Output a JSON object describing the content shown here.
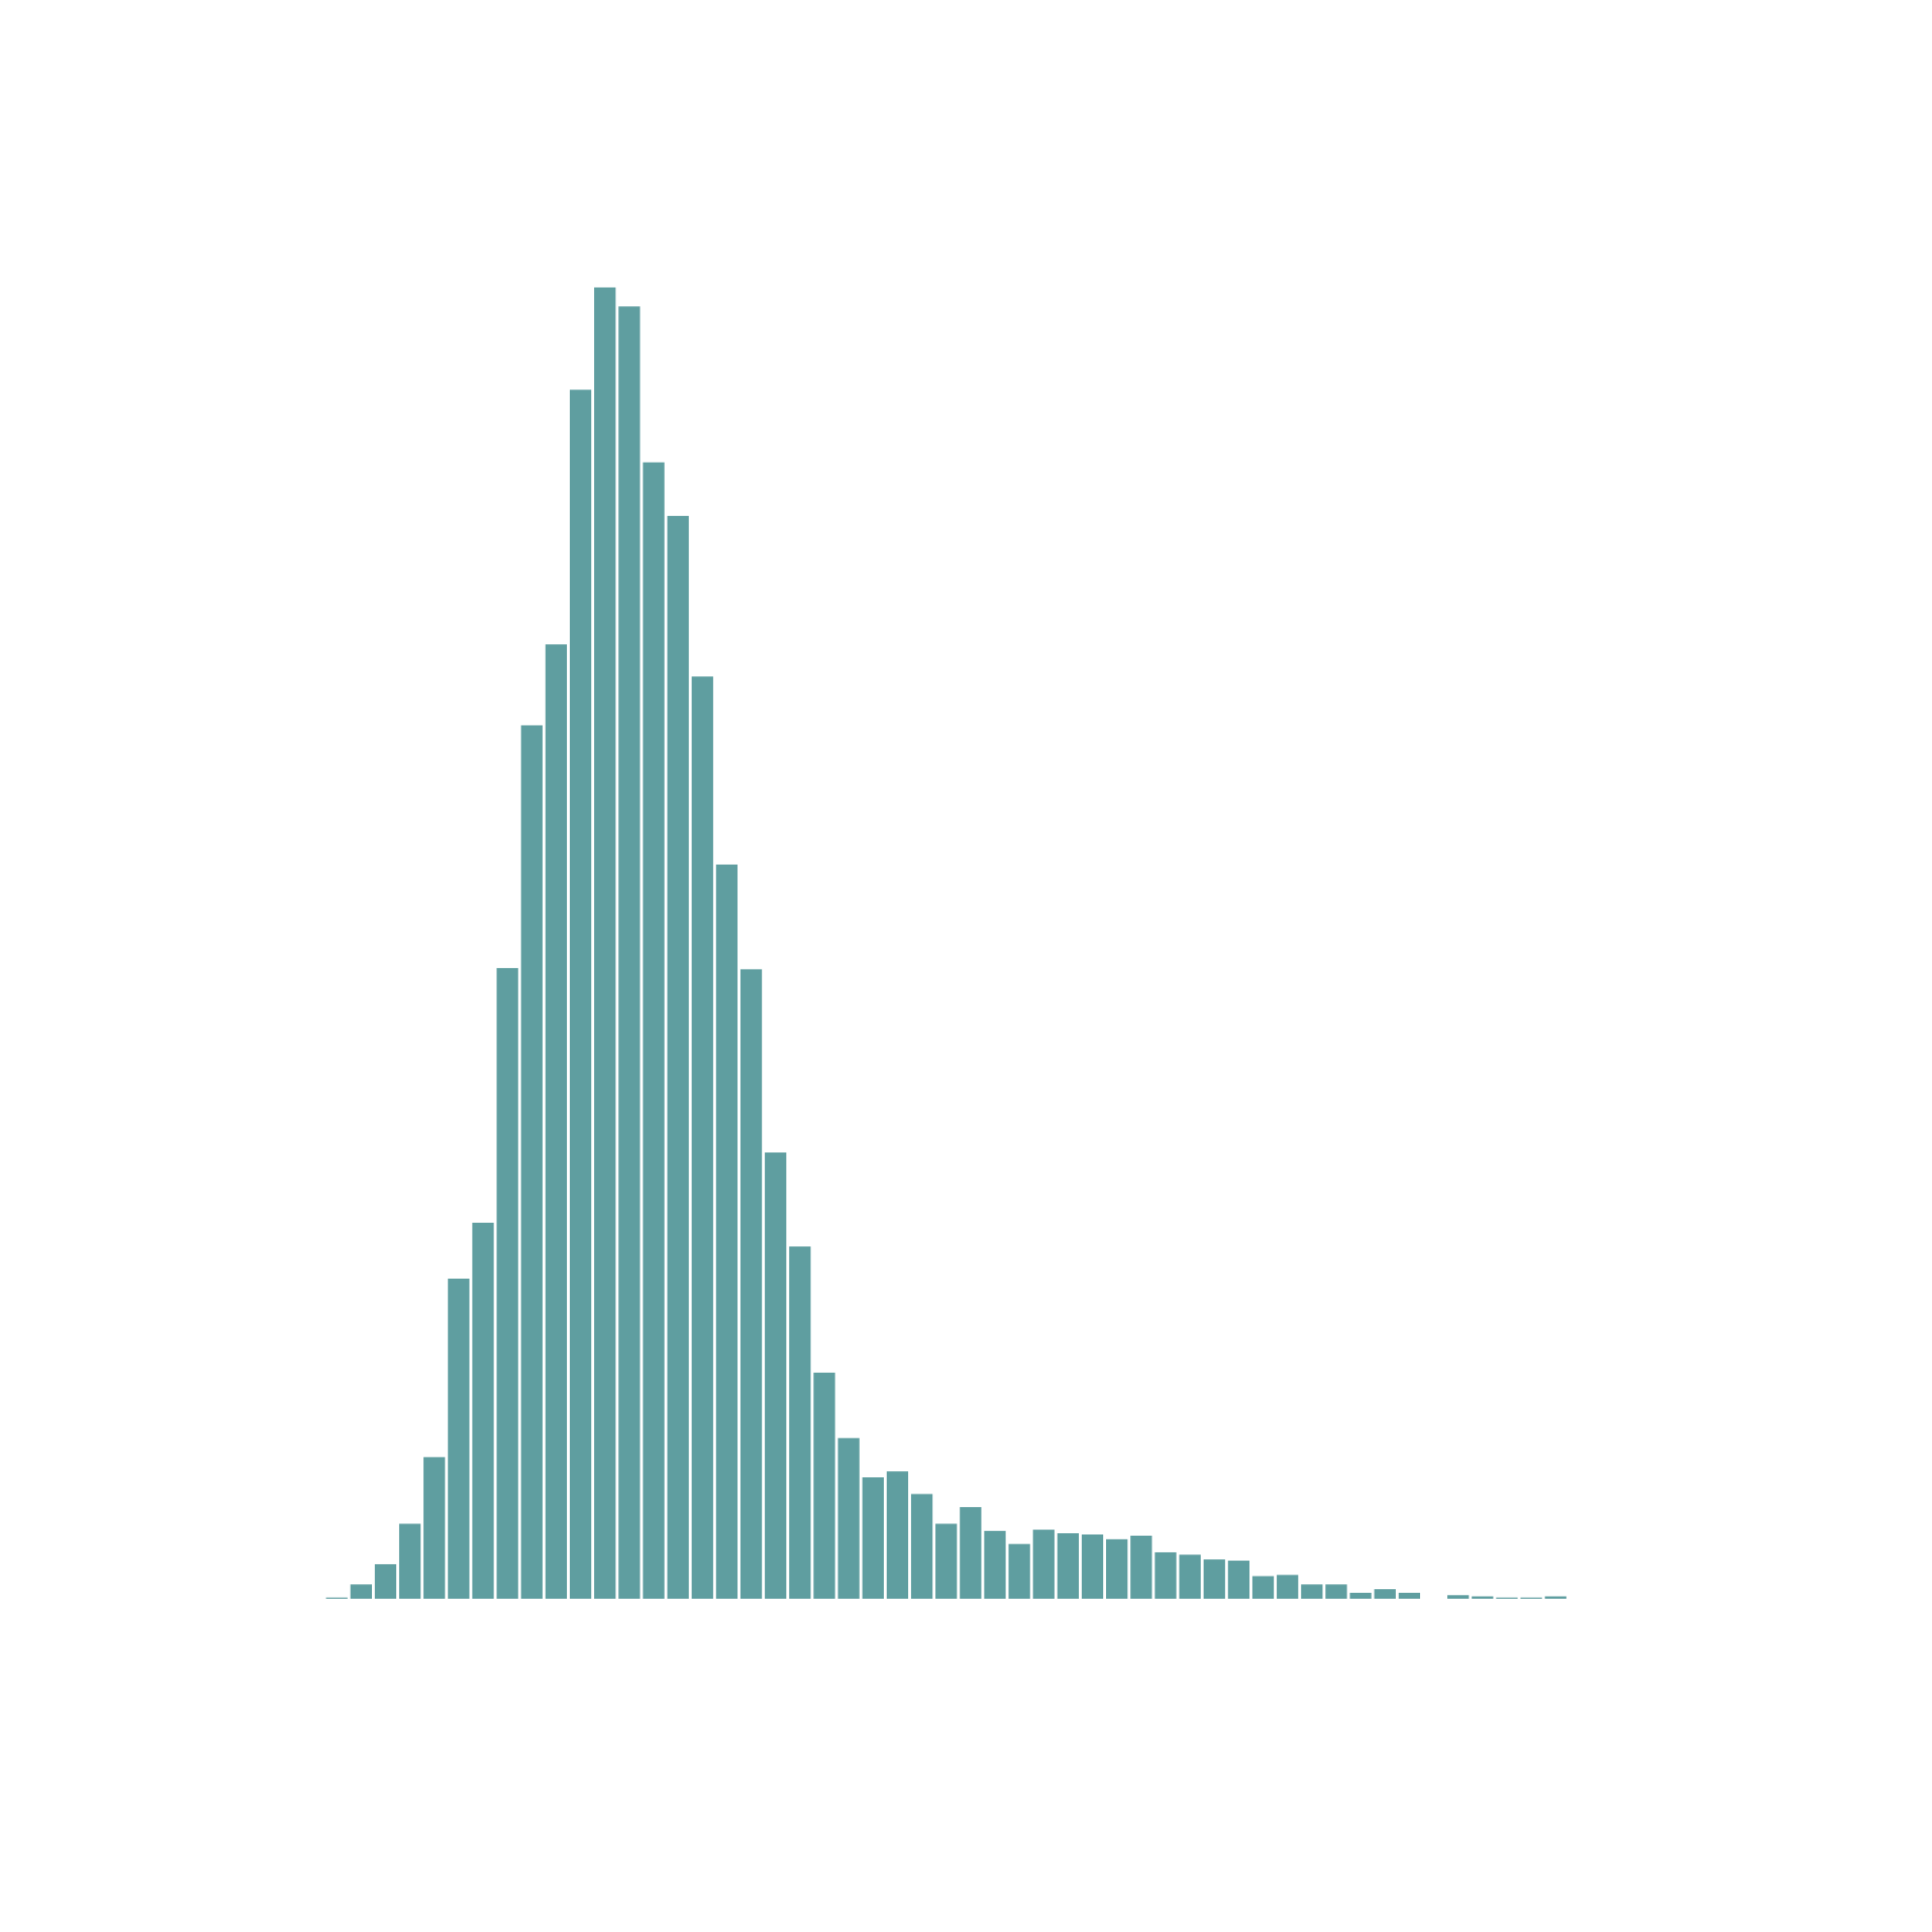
{
  "chart_data": {
    "type": "bar",
    "subtype": "histogram",
    "title": "",
    "xlabel": "",
    "ylabel": "",
    "axes_visible": false,
    "grid": false,
    "legend": "none",
    "bar_color": "#5f9ea0",
    "bin_count": 51,
    "ylim": [
      0,
      1100
    ],
    "values": [
      1,
      12,
      29,
      63,
      119,
      269,
      316,
      530,
      734,
      802,
      1016,
      1102,
      1086,
      955,
      910,
      775,
      617,
      529,
      375,
      296,
      190,
      135,
      102,
      107,
      88,
      63,
      77,
      57,
      46,
      58,
      55,
      54,
      50,
      53,
      39,
      37,
      33,
      32,
      19,
      20,
      12,
      12,
      5,
      8,
      5,
      0,
      3,
      2,
      1,
      1,
      2
    ]
  }
}
